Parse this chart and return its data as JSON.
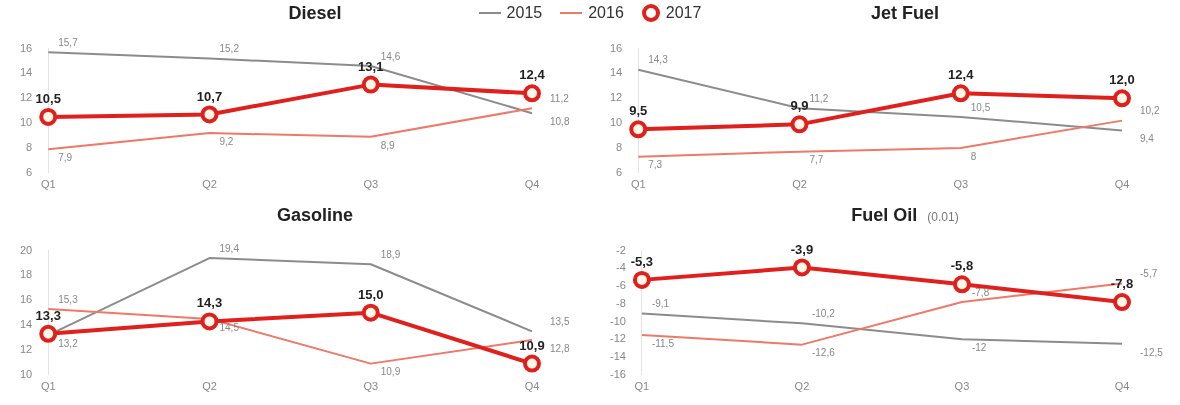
{
  "chart_data": [
    {
      "type": "line",
      "title": "Diesel",
      "categories": [
        "Q1",
        "Q2",
        "Q3",
        "Q4"
      ],
      "ylim": [
        6,
        16
      ],
      "yticks": [
        6,
        8,
        10,
        12,
        14,
        16
      ],
      "grid": false,
      "legend": "top",
      "series": [
        {
          "name": "2015",
          "color": "#8c8c8c",
          "marker": "none",
          "values": [
            15.7,
            15.2,
            14.6,
            10.8
          ],
          "value_labels": [
            "15,7",
            "15,2",
            "14,6",
            "10,8"
          ]
        },
        {
          "name": "2016",
          "color": "#f07868",
          "marker": "none",
          "values": [
            7.9,
            9.2,
            8.9,
            11.2
          ],
          "value_labels": [
            "7,9",
            "9,2",
            "8,9",
            "11,2"
          ]
        },
        {
          "name": "2017",
          "color": "#e0201c",
          "marker": "circle",
          "values": [
            10.5,
            10.7,
            13.1,
            12.4
          ],
          "value_labels": [
            "10,5",
            "10,7",
            "13,1",
            "12,4"
          ]
        }
      ]
    },
    {
      "type": "line",
      "title": "Jet Fuel",
      "categories": [
        "Q1",
        "Q2",
        "Q3",
        "Q4"
      ],
      "ylim": [
        6,
        16
      ],
      "yticks": [
        6,
        8,
        10,
        12,
        14,
        16
      ],
      "grid": false,
      "series": [
        {
          "name": "2015",
          "color": "#8c8c8c",
          "marker": "none",
          "values": [
            14.3,
            11.2,
            10.5,
            9.4
          ],
          "value_labels": [
            "14,3",
            "11,2",
            "10,5",
            "9,4"
          ]
        },
        {
          "name": "2016",
          "color": "#f07868",
          "marker": "none",
          "values": [
            7.3,
            7.7,
            8,
            10.2
          ],
          "value_labels": [
            "7,3",
            "7,7",
            "8",
            "10,2"
          ]
        },
        {
          "name": "2017",
          "color": "#e0201c",
          "marker": "circle",
          "values": [
            9.5,
            9.9,
            12.4,
            12.0
          ],
          "value_labels": [
            "9,5",
            "9,9",
            "12,4",
            "12,0"
          ]
        }
      ]
    },
    {
      "type": "line",
      "title": "Gasoline",
      "categories": [
        "Q1",
        "Q2",
        "Q3",
        "Q4"
      ],
      "ylim": [
        10,
        20
      ],
      "yticks": [
        10,
        12,
        14,
        16,
        18,
        20
      ],
      "grid": false,
      "series": [
        {
          "name": "2015",
          "color": "#8c8c8c",
          "marker": "none",
          "values": [
            13.2,
            19.4,
            18.9,
            13.5
          ],
          "value_labels": [
            "13,2",
            "19,4",
            "18,9",
            "13,5"
          ]
        },
        {
          "name": "2016",
          "color": "#f07868",
          "marker": "none",
          "values": [
            15.3,
            14.5,
            10.9,
            12.8
          ],
          "value_labels": [
            "15,3",
            "14,5",
            "10,9",
            "12,8"
          ]
        },
        {
          "name": "2017",
          "color": "#e0201c",
          "marker": "circle",
          "values": [
            13.3,
            14.3,
            15.0,
            10.9
          ],
          "value_labels": [
            "13,3",
            "14,3",
            "15,0",
            "10,9"
          ]
        }
      ]
    },
    {
      "type": "line",
      "title": "Fuel Oil",
      "subtitle": "(0.01)",
      "categories": [
        "Q1",
        "Q2",
        "Q3",
        "Q4"
      ],
      "ylim": [
        -16,
        -2
      ],
      "yticks": [
        -16,
        -14,
        -12,
        -10,
        -8,
        -6,
        -4,
        -2
      ],
      "grid": false,
      "series": [
        {
          "name": "2015",
          "color": "#8c8c8c",
          "marker": "none",
          "values": [
            -9.1,
            -10.2,
            -12,
            -12.5
          ],
          "value_labels": [
            "-9,1",
            "-10,2",
            "-12",
            "-12,5"
          ]
        },
        {
          "name": "2016",
          "color": "#f07868",
          "marker": "none",
          "values": [
            -11.5,
            -12.6,
            -7.8,
            -5.7
          ],
          "value_labels": [
            "-11,5",
            "-12,6",
            "-7,8",
            "-5,7"
          ]
        },
        {
          "name": "2017",
          "color": "#e0201c",
          "marker": "circle",
          "values": [
            -5.3,
            -3.9,
            -5.8,
            -7.8
          ],
          "value_labels": [
            "-5,3",
            "-3,9",
            "-5,8",
            "-7,8"
          ]
        }
      ]
    }
  ]
}
